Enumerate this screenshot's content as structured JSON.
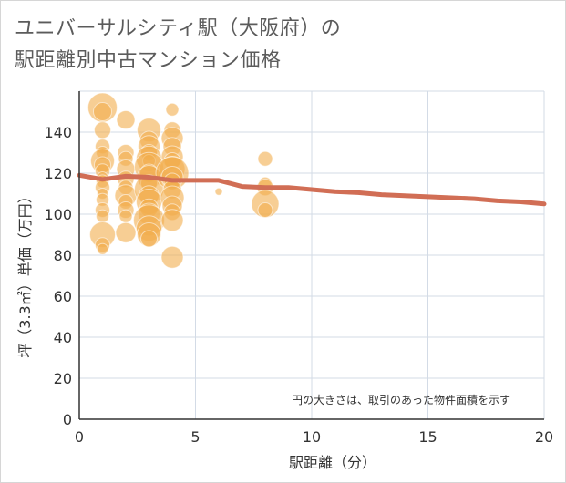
{
  "title_line1": "ユニバーサルシティ駅（大阪府）の",
  "title_line2": "駅距離別中古マンション価格",
  "note": "円の大きさは、取引のあった物件面積を示す",
  "colors": {
    "bubble": "#f2ad4c",
    "trend": "#d16e55",
    "grid": "#d3dbe6",
    "axis": "#333333"
  },
  "chart_data": {
    "type": "scatter",
    "xlabel": "駅距離（分）",
    "ylabel": "坪（3.3㎡）単価（万円）",
    "xlim": [
      0,
      20
    ],
    "ylim": [
      0,
      160
    ],
    "xticks": [
      0,
      5,
      10,
      15,
      20
    ],
    "yticks": [
      0,
      20,
      40,
      60,
      80,
      100,
      120,
      140
    ],
    "points": [
      {
        "x": 1,
        "y": 152,
        "s": 16
      },
      {
        "x": 1,
        "y": 150,
        "s": 10
      },
      {
        "x": 1,
        "y": 141,
        "s": 9
      },
      {
        "x": 1,
        "y": 133,
        "s": 8
      },
      {
        "x": 1,
        "y": 130,
        "s": 7
      },
      {
        "x": 1,
        "y": 126,
        "s": 13
      },
      {
        "x": 1,
        "y": 124,
        "s": 9
      },
      {
        "x": 1,
        "y": 121,
        "s": 8
      },
      {
        "x": 1,
        "y": 118,
        "s": 6
      },
      {
        "x": 1,
        "y": 116,
        "s": 7
      },
      {
        "x": 1,
        "y": 113,
        "s": 8
      },
      {
        "x": 1,
        "y": 110,
        "s": 6
      },
      {
        "x": 1,
        "y": 107,
        "s": 7
      },
      {
        "x": 1,
        "y": 102,
        "s": 8
      },
      {
        "x": 1,
        "y": 99,
        "s": 7
      },
      {
        "x": 1,
        "y": 90,
        "s": 14
      },
      {
        "x": 1,
        "y": 85,
        "s": 8
      },
      {
        "x": 1,
        "y": 83,
        "s": 6
      },
      {
        "x": 2,
        "y": 146,
        "s": 10
      },
      {
        "x": 2,
        "y": 130,
        "s": 9
      },
      {
        "x": 2,
        "y": 127,
        "s": 8
      },
      {
        "x": 2,
        "y": 122,
        "s": 10
      },
      {
        "x": 2,
        "y": 117,
        "s": 9
      },
      {
        "x": 2,
        "y": 113,
        "s": 8
      },
      {
        "x": 2,
        "y": 109,
        "s": 12
      },
      {
        "x": 2,
        "y": 106,
        "s": 8
      },
      {
        "x": 2,
        "y": 102,
        "s": 9
      },
      {
        "x": 2,
        "y": 99,
        "s": 7
      },
      {
        "x": 2,
        "y": 91,
        "s": 11
      },
      {
        "x": 3,
        "y": 141,
        "s": 13
      },
      {
        "x": 3,
        "y": 136,
        "s": 10
      },
      {
        "x": 3,
        "y": 133,
        "s": 12
      },
      {
        "x": 3,
        "y": 130,
        "s": 9
      },
      {
        "x": 3,
        "y": 127,
        "s": 14
      },
      {
        "x": 3,
        "y": 126,
        "s": 7
      },
      {
        "x": 3,
        "y": 123,
        "s": 16
      },
      {
        "x": 3,
        "y": 120,
        "s": 10
      },
      {
        "x": 3,
        "y": 118,
        "s": 13
      },
      {
        "x": 3,
        "y": 115,
        "s": 9
      },
      {
        "x": 3,
        "y": 112,
        "s": 16
      },
      {
        "x": 3,
        "y": 109,
        "s": 11
      },
      {
        "x": 3,
        "y": 106,
        "s": 14
      },
      {
        "x": 3,
        "y": 103,
        "s": 10
      },
      {
        "x": 3,
        "y": 100,
        "s": 12
      },
      {
        "x": 3,
        "y": 97,
        "s": 17
      },
      {
        "x": 3,
        "y": 93,
        "s": 14
      },
      {
        "x": 3,
        "y": 90,
        "s": 13
      },
      {
        "x": 3,
        "y": 88,
        "s": 9
      },
      {
        "x": 4,
        "y": 151,
        "s": 7
      },
      {
        "x": 4,
        "y": 141,
        "s": 9
      },
      {
        "x": 4,
        "y": 137,
        "s": 12
      },
      {
        "x": 4,
        "y": 133,
        "s": 10
      },
      {
        "x": 4,
        "y": 128,
        "s": 12
      },
      {
        "x": 4,
        "y": 126,
        "s": 9
      },
      {
        "x": 4,
        "y": 122,
        "s": 14
      },
      {
        "x": 4,
        "y": 120,
        "s": 18
      },
      {
        "x": 4,
        "y": 118,
        "s": 12
      },
      {
        "x": 4,
        "y": 116,
        "s": 9
      },
      {
        "x": 4,
        "y": 112,
        "s": 10
      },
      {
        "x": 4,
        "y": 108,
        "s": 13
      },
      {
        "x": 4,
        "y": 104,
        "s": 11
      },
      {
        "x": 4,
        "y": 101,
        "s": 9
      },
      {
        "x": 4,
        "y": 97,
        "s": 12
      },
      {
        "x": 4,
        "y": 79,
        "s": 12
      },
      {
        "x": 6,
        "y": 111,
        "s": 4
      },
      {
        "x": 8,
        "y": 127,
        "s": 8
      },
      {
        "x": 8,
        "y": 115,
        "s": 7
      },
      {
        "x": 8,
        "y": 113,
        "s": 9
      },
      {
        "x": 8,
        "y": 105,
        "s": 15
      },
      {
        "x": 8,
        "y": 102,
        "s": 8
      }
    ],
    "trend": {
      "x": [
        0,
        1,
        2,
        3,
        4,
        5,
        6,
        7,
        8,
        9,
        10,
        11,
        12,
        13,
        14,
        15,
        16,
        17,
        18,
        19,
        20
      ],
      "y": [
        119,
        117,
        118.5,
        118,
        116.5,
        116.5,
        116.5,
        113.5,
        113,
        113,
        112,
        111,
        110.5,
        109.5,
        109,
        108.5,
        108,
        107.5,
        106.5,
        106,
        105
      ]
    }
  }
}
